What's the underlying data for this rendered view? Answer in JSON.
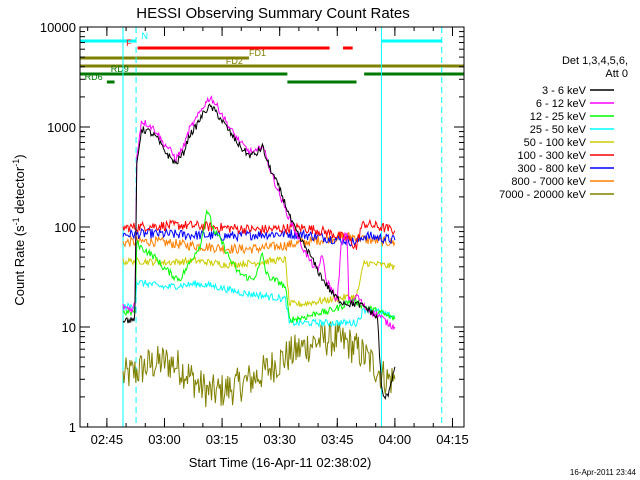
{
  "chart_data": {
    "type": "line",
    "title": "HESSI Observing Summary Count Rates",
    "xlabel": "Start Time (16-Apr-11 02:38:02)",
    "ylabel": "Count Rate (s⁻¹ detector⁻¹)",
    "ylabel_parts": [
      "Count Rate (s",
      "-1",
      " detector",
      "-1",
      ")"
    ],
    "x_unit": "minutes after 02:38:02",
    "xlim": [
      0,
      100
    ],
    "ylim": [
      1,
      10000
    ],
    "y_scale": "log",
    "x_ticks": [
      {
        "label": "02:45",
        "value": 7
      },
      {
        "label": "03:00",
        "value": 22
      },
      {
        "label": "03:15",
        "value": 37
      },
      {
        "label": "03:30",
        "value": 52
      },
      {
        "label": "03:45",
        "value": 67
      },
      {
        "label": "04:00",
        "value": 82
      },
      {
        "label": "04:15",
        "value": 97
      }
    ],
    "y_ticks": [
      {
        "label": "1",
        "value": 1
      },
      {
        "label": "10",
        "value": 10
      },
      {
        "label": "100",
        "value": 100
      },
      {
        "label": "1000",
        "value": 1000
      },
      {
        "label": "10000",
        "value": 10000
      }
    ],
    "legend_title": [
      "Det 1,3,4,5,6,",
      "Att 0"
    ],
    "legend_position": "right",
    "grid": false,
    "timestamp": "16-Apr-2011 23:44",
    "vertical_lines": [
      {
        "x": 0,
        "color": "#00ffff",
        "style": "solid"
      },
      {
        "x": 11.2,
        "color": "#00ffff",
        "style": "solid"
      },
      {
        "x": 14.6,
        "color": "#00ffff",
        "style": "dashed"
      },
      {
        "x": 78.5,
        "color": "#00ffff",
        "style": "solid"
      },
      {
        "x": 94.2,
        "color": "#00ffff",
        "style": "dashed"
      }
    ],
    "flag_bars": [
      {
        "label": "N",
        "color": "#00ffff",
        "row": 1,
        "label_x": 16,
        "segments": [
          [
            0,
            14.6
          ],
          [
            78.5,
            94.2
          ]
        ]
      },
      {
        "label": "F",
        "color": "#ff0000",
        "row": 2,
        "label_x": 12,
        "segments": [
          [
            15,
            65
          ],
          [
            68.5,
            71
          ]
        ]
      },
      {
        "label": "FD1",
        "color": "#808000",
        "row": 3,
        "label_x": 44,
        "segments": [
          [
            0,
            44
          ]
        ]
      },
      {
        "label": "FD2",
        "color": "#808000",
        "row": 4,
        "label_x": 38,
        "segments": [
          [
            0,
            100
          ]
        ]
      },
      {
        "label": "RD9",
        "color": "#007800",
        "row": 5,
        "label_x": 8,
        "segments": [
          [
            0,
            54
          ],
          [
            74,
            100
          ]
        ]
      },
      {
        "label": "RD6",
        "color": "#007800",
        "row": 6,
        "label_x": 1.2,
        "segments": [
          [
            7,
            9
          ],
          [
            54,
            72
          ]
        ]
      }
    ],
    "series": [
      {
        "name": "3 - 6 keV",
        "color": "#000000",
        "x": [
          11.2,
          13.8,
          14.3,
          14.8,
          16,
          18,
          20,
          21.5,
          23,
          25,
          27,
          28.5,
          30,
          31,
          32.5,
          34,
          35.5,
          37,
          38.5,
          40,
          42,
          44,
          46,
          47.5,
          48.5,
          50,
          52,
          54,
          55,
          57,
          60,
          62,
          64,
          66,
          68,
          70,
          72,
          74,
          76,
          77.5,
          78.5,
          79,
          80,
          82
        ],
        "y": [
          12,
          11.5,
          13,
          420,
          950,
          900,
          780,
          620,
          520,
          430,
          560,
          830,
          980,
          1150,
          1450,
          1600,
          1400,
          1150,
          950,
          780,
          620,
          520,
          540,
          640,
          480,
          350,
          240,
          150,
          115,
          80,
          52,
          36,
          27,
          21,
          18,
          17,
          17,
          16,
          14,
          12,
          2.5,
          2,
          2,
          4
        ]
      },
      {
        "name": "6 - 12 keV",
        "color": "#ff00ff",
        "x": [
          11.2,
          13.8,
          14.3,
          14.8,
          16,
          18,
          20,
          21.5,
          23,
          25,
          27,
          28.5,
          30,
          31,
          32.5,
          34,
          35.5,
          37,
          38.5,
          40,
          42,
          44,
          46,
          47.5,
          48.5,
          50,
          52,
          54,
          56,
          58,
          60,
          62,
          63,
          64,
          65,
          66,
          67,
          68,
          69.5,
          70,
          71,
          72,
          74,
          76,
          78,
          79,
          80,
          82
        ],
        "y": [
          16,
          15,
          18,
          520,
          1150,
          1050,
          900,
          700,
          620,
          480,
          640,
          950,
          1150,
          1350,
          1700,
          2000,
          1650,
          1350,
          1050,
          860,
          680,
          570,
          560,
          670,
          500,
          330,
          210,
          135,
          92,
          62,
          45,
          36,
          55,
          30,
          26,
          22,
          18,
          65,
          90,
          20,
          17,
          21,
          16,
          14,
          13,
          12,
          11,
          10
        ]
      },
      {
        "name": "12 - 25 keV",
        "color": "#00ff00",
        "x": [
          11.2,
          13.8,
          14.3,
          14.8,
          16,
          18,
          20,
          21.5,
          23,
          24.5,
          26,
          28,
          30,
          31.5,
          33,
          35,
          37,
          39,
          41,
          43,
          45,
          46.5,
          47.5,
          48.5,
          50,
          52,
          53.5,
          54.5,
          56,
          58,
          60,
          62,
          64,
          66,
          68,
          70,
          72,
          74,
          76,
          78,
          80,
          82
        ],
        "y": [
          14,
          14,
          15,
          70,
          62,
          55,
          48,
          40,
          36,
          32,
          30,
          40,
          55,
          68,
          150,
          90,
          70,
          48,
          36,
          32,
          30,
          38,
          55,
          34,
          30,
          28,
          25,
          12,
          12,
          12.5,
          13,
          14,
          14,
          15,
          16,
          18,
          18,
          16,
          15,
          14,
          13,
          12
        ]
      },
      {
        "name": "25 - 50 keV",
        "color": "#00ffff",
        "x": [
          11.2,
          13.8,
          14.3,
          14.8,
          18,
          22,
          26,
          30,
          34,
          38,
          42,
          46,
          50,
          53.5,
          54.5,
          58,
          62,
          66,
          70,
          72,
          74,
          76,
          78,
          80,
          82
        ],
        "y": [
          16,
          16,
          17,
          28,
          27,
          25,
          26,
          27,
          26,
          24,
          22,
          21,
          20,
          19,
          11,
          11,
          11,
          11,
          11,
          11,
          15,
          15,
          14,
          13,
          13
        ]
      },
      {
        "name": "50 - 100 keV",
        "color": "#cccc00",
        "x": [
          11.2,
          14.8,
          18,
          22,
          26,
          30,
          34,
          38,
          42,
          46,
          50,
          53.5,
          54.5,
          58,
          62,
          66,
          70,
          72,
          74,
          78,
          82
        ],
        "y": [
          45,
          46,
          45,
          44,
          45,
          46,
          44,
          42,
          43,
          44,
          46,
          47,
          17,
          17,
          18,
          19,
          20,
          20,
          44,
          42,
          40
        ]
      },
      {
        "name": "100 - 300 keV",
        "color": "#ff0000",
        "x": [
          11.2,
          14.8,
          18,
          22,
          26,
          30,
          34,
          38,
          42,
          46,
          50,
          54,
          58,
          62,
          66,
          70,
          72,
          73,
          74,
          78,
          82
        ],
        "y": [
          98,
          100,
          102,
          103,
          104,
          103,
          100,
          98,
          96,
          94,
          95,
          97,
          98,
          93,
          85,
          75,
          62,
          95,
          108,
          100,
          92
        ]
      },
      {
        "name": "300 - 800 keV",
        "color": "#0000ff",
        "x": [
          11.2,
          14.8,
          18,
          22,
          26,
          30,
          34,
          38,
          42,
          46,
          50,
          54,
          58,
          62,
          66,
          70,
          72,
          74,
          78,
          82
        ],
        "y": [
          84,
          85,
          86,
          85,
          84,
          83,
          82,
          81,
          82,
          84,
          85,
          86,
          84,
          80,
          76,
          73,
          70,
          82,
          78,
          74
        ]
      },
      {
        "name": "800 - 7000 keV",
        "color": "#ff8000",
        "x": [
          11.2,
          14.8,
          18,
          22,
          26,
          30,
          34,
          38,
          42,
          46,
          50,
          54,
          58,
          62,
          66,
          70,
          72,
          74,
          78,
          82
        ],
        "y": [
          70,
          71,
          72,
          70,
          67,
          65,
          63,
          61,
          60,
          61,
          63,
          66,
          70,
          74,
          78,
          80,
          80,
          75,
          72,
          70
        ]
      },
      {
        "name": "7000 - 20000 keV",
        "color": "#808000",
        "x": [
          11.2,
          14.8,
          18,
          22,
          25,
          28,
          31,
          34,
          37,
          40,
          43,
          46,
          49,
          52,
          55,
          58,
          61,
          64,
          67,
          70,
          73,
          76,
          78.5,
          80,
          82
        ],
        "y": [
          3.2,
          3.6,
          4.2,
          4.5,
          4.2,
          3.4,
          2.6,
          2.2,
          2.3,
          2.5,
          2.8,
          3.2,
          3.8,
          4.6,
          5.4,
          6.2,
          7,
          7.6,
          7.4,
          6.8,
          5.6,
          4.4,
          3.4,
          3,
          3
        ]
      }
    ]
  }
}
